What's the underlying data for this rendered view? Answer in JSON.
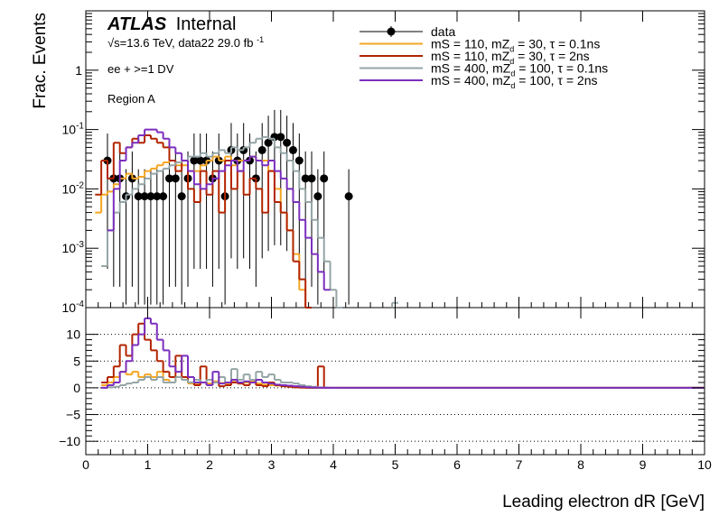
{
  "chart_data": {
    "type": "line",
    "header": {
      "experiment": "ATLAS",
      "status": "Internal",
      "energy": "√s=13.6 TeV, data22 29.0 fb",
      "energy_sup": "-1",
      "selection": "ee + >=1 DV",
      "region": "Region A"
    },
    "xlabel": "Leading electron dR [GeV]",
    "ylabel": "Frac. Events",
    "xlim": [
      0,
      10
    ],
    "ylim": [
      0.0001,
      10
    ],
    "yscale": "log",
    "x_ticks": [
      "0",
      "1",
      "2",
      "3",
      "4",
      "5",
      "6",
      "7",
      "8",
      "9",
      "10"
    ],
    "y_ticks": [
      {
        "base": "10",
        "exp": "-4"
      },
      {
        "base": "10",
        "exp": "-3"
      },
      {
        "base": "10",
        "exp": "-2"
      },
      {
        "base": "10",
        "exp": "-1"
      },
      {
        "base": "1",
        "exp": ""
      }
    ],
    "ratio": {
      "ylim": [
        -12.5,
        15
      ],
      "y_ticks": [
        "−10",
        "−5",
        "0",
        "5",
        "10"
      ],
      "gridlines": [
        -10,
        -5,
        0,
        5,
        10
      ]
    },
    "legend_position": "top-right",
    "series": [
      {
        "label": {
          "a": "data",
          "b": "",
          "c": ""
        },
        "color": "#000000",
        "kind": "points",
        "x": [
          0.35,
          0.45,
          0.55,
          0.65,
          0.75,
          0.85,
          0.95,
          1.05,
          1.15,
          1.25,
          1.35,
          1.45,
          1.55,
          1.65,
          1.75,
          1.85,
          1.95,
          2.05,
          2.15,
          2.25,
          2.35,
          2.45,
          2.55,
          2.65,
          2.75,
          2.85,
          2.95,
          3.05,
          3.15,
          3.25,
          3.35,
          3.45,
          3.55,
          3.65,
          3.75,
          3.85,
          4.25
        ],
        "y": [
          0.03,
          0.015,
          0.015,
          0.0075,
          0.015,
          0.0075,
          0.0075,
          0.0075,
          0.0075,
          0.0075,
          0.015,
          0.015,
          0.0075,
          0.015,
          0.03,
          0.03,
          0.03,
          0.015,
          0.03,
          0.0075,
          0.045,
          0.03,
          0.045,
          0.03,
          0.015,
          0.045,
          0.06,
          0.075,
          0.075,
          0.06,
          0.045,
          0.03,
          0.015,
          0.015,
          0.0075,
          0.015,
          0.0075
        ]
      },
      {
        "label": {
          "a": "mS = 110, mZ",
          "b": "d",
          "c": " = 30, τ = 0.1ns"
        },
        "color": "#f5a623",
        "kind": "hist",
        "x": [
          0.2,
          0.3,
          0.4,
          0.5,
          0.6,
          0.7,
          0.8,
          0.9,
          1.0,
          1.1,
          1.2,
          1.3,
          1.4,
          1.5,
          1.6,
          1.7,
          1.8,
          1.9,
          2.0,
          2.1,
          2.2,
          2.3,
          2.4,
          2.5,
          2.6,
          2.7,
          2.8,
          2.9,
          3.0,
          3.1,
          3.2,
          3.3,
          3.4,
          3.5,
          3.6
        ],
        "y": [
          0.004,
          0.008,
          0.009,
          0.012,
          0.015,
          0.018,
          0.015,
          0.016,
          0.02,
          0.022,
          0.025,
          0.028,
          0.03,
          0.025,
          0.025,
          0.02,
          0.02,
          0.025,
          0.03,
          0.035,
          0.03,
          0.035,
          0.025,
          0.03,
          0.03,
          0.035,
          0.03,
          0.03,
          0.02,
          0.01,
          0.004,
          0.002,
          0.0008,
          0.0002,
          0.0001
        ]
      },
      {
        "label": {
          "a": "mS = 110, mZ",
          "b": "d",
          "c": " = 30, τ = 2ns"
        },
        "color": "#b22400",
        "kind": "hist",
        "x": [
          0.2,
          0.3,
          0.4,
          0.5,
          0.6,
          0.7,
          0.8,
          0.9,
          1.0,
          1.1,
          1.2,
          1.3,
          1.4,
          1.5,
          1.6,
          1.7,
          1.8,
          1.9,
          2.0,
          2.1,
          2.2,
          2.3,
          2.4,
          2.5,
          2.6,
          2.7,
          2.8,
          2.9,
          3.0,
          3.1,
          3.2,
          3.3,
          3.4,
          3.5,
          3.6
        ],
        "y": [
          0.008,
          0.03,
          0.015,
          0.06,
          0.04,
          0.05,
          0.07,
          0.06,
          0.08,
          0.07,
          0.06,
          0.05,
          0.03,
          0.02,
          0.03,
          0.01,
          0.006,
          0.02,
          0.008,
          0.02,
          0.004,
          0.03,
          0.01,
          0.02,
          0.008,
          0.015,
          0.01,
          0.004,
          0.02,
          0.006,
          0.004,
          0.002,
          0.0006,
          0.0003,
          0.0001
        ]
      },
      {
        "label": {
          "a": "mS = 400, mZ",
          "b": "d",
          "c": " = 100, τ = 0.1ns"
        },
        "color": "#95a5a6",
        "kind": "hist",
        "x": [
          0.3,
          0.4,
          0.5,
          0.6,
          0.7,
          0.8,
          0.9,
          1.0,
          1.1,
          1.2,
          1.3,
          1.4,
          1.5,
          1.6,
          1.7,
          1.8,
          1.9,
          2.0,
          2.1,
          2.2,
          2.3,
          2.4,
          2.5,
          2.6,
          2.7,
          2.8,
          2.9,
          3.0,
          3.1,
          3.2,
          3.3,
          3.4,
          3.5,
          3.6,
          3.7,
          3.8,
          3.9,
          4.0,
          4.1,
          5.0
        ],
        "y": [
          0.0005,
          0.002,
          0.004,
          0.006,
          0.008,
          0.01,
          0.012,
          0.015,
          0.018,
          0.02,
          0.022,
          0.025,
          0.028,
          0.03,
          0.035,
          0.035,
          0.04,
          0.035,
          0.04,
          0.045,
          0.04,
          0.05,
          0.045,
          0.05,
          0.06,
          0.07,
          0.075,
          0.07,
          0.05,
          0.04,
          0.03,
          0.02,
          0.01,
          0.006,
          0.003,
          0.0015,
          0.0006,
          0.0002,
          0.0001,
          0.00012
        ]
      },
      {
        "label": {
          "a": "mS = 400, mZ",
          "b": "d",
          "c": " = 100, τ = 2ns"
        },
        "color": "#7b2fbe",
        "kind": "hist",
        "x": [
          0.4,
          0.5,
          0.6,
          0.7,
          0.8,
          0.9,
          1.0,
          1.1,
          1.2,
          1.3,
          1.4,
          1.5,
          1.6,
          1.7,
          1.8,
          1.9,
          2.0,
          2.1,
          2.2,
          2.3,
          2.4,
          2.5,
          2.6,
          2.7,
          2.8,
          2.9,
          3.0,
          3.1,
          3.2,
          3.3,
          3.4,
          3.5,
          3.6,
          3.7,
          3.8,
          3.9
        ],
        "y": [
          0.002,
          0.01,
          0.03,
          0.05,
          0.06,
          0.08,
          0.1,
          0.1,
          0.09,
          0.07,
          0.05,
          0.04,
          0.03,
          0.02,
          0.012,
          0.01,
          0.012,
          0.015,
          0.02,
          0.025,
          0.03,
          0.02,
          0.03,
          0.035,
          0.03,
          0.025,
          0.03,
          0.02,
          0.015,
          0.01,
          0.006,
          0.003,
          0.0015,
          0.0008,
          0.0004,
          0.0002
        ]
      }
    ],
    "ratio_series": [
      {
        "color": "#f5a623",
        "x": [
          0.3,
          0.4,
          0.5,
          0.6,
          0.7,
          0.8,
          0.9,
          1.0,
          1.1,
          1.2,
          1.3,
          1.4,
          1.5,
          1.6,
          1.7,
          1.8,
          1.9,
          2.0,
          2.1,
          2.2,
          2.3,
          2.4,
          2.5,
          2.6,
          2.7,
          2.8,
          2.9,
          3.0,
          3.1,
          3.2,
          3.3,
          3.4,
          3.5,
          3.6,
          3.7,
          3.8,
          3.9,
          4.0
        ],
        "y": [
          0.5,
          1,
          2,
          3,
          2.5,
          3,
          2,
          2.5,
          2,
          3,
          1.5,
          1,
          2,
          1.5,
          0.8,
          0.7,
          1,
          0.8,
          1.2,
          0.9,
          0.7,
          1.1,
          0.8,
          1,
          1.2,
          0.8,
          0.6,
          0.5,
          0.4,
          0.3,
          0.2,
          0.1,
          0.05,
          0.02,
          0.01,
          0,
          0,
          0
        ]
      },
      {
        "color": "#b22400",
        "x": [
          0.3,
          0.4,
          0.5,
          0.6,
          0.7,
          0.8,
          0.9,
          1.0,
          1.1,
          1.2,
          1.3,
          1.4,
          1.5,
          1.6,
          1.7,
          1.8,
          1.9,
          2.0,
          2.1,
          2.2,
          2.3,
          2.4,
          2.5,
          2.6,
          2.7,
          2.8,
          2.9,
          3.0,
          3.1,
          3.2,
          3.3,
          3.4,
          3.5,
          3.6,
          3.7,
          3.8,
          3.9,
          4.0
        ],
        "y": [
          1,
          2,
          4,
          8,
          6,
          10,
          12,
          9,
          7,
          5,
          3,
          2,
          6,
          2,
          1,
          0.5,
          4,
          0.5,
          1,
          0.3,
          0.5,
          1,
          0.8,
          0.5,
          1,
          0.5,
          0.3,
          1,
          0.5,
          0.3,
          0.2,
          0.1,
          0.05,
          0,
          0,
          4,
          0,
          0
        ]
      },
      {
        "color": "#95a5a6",
        "x": [
          0.3,
          0.4,
          0.5,
          0.6,
          0.7,
          0.8,
          0.9,
          1.0,
          1.1,
          1.2,
          1.3,
          1.4,
          1.5,
          1.6,
          1.7,
          1.8,
          1.9,
          2.0,
          2.1,
          2.2,
          2.3,
          2.4,
          2.5,
          2.6,
          2.7,
          2.8,
          2.9,
          3.0,
          3.1,
          3.2,
          3.3,
          3.4,
          3.5,
          3.6,
          3.7,
          3.8,
          3.9,
          4.0
        ],
        "y": [
          0,
          0.1,
          0.2,
          0.5,
          0.8,
          1,
          1.5,
          2,
          1.5,
          2,
          1,
          1,
          2,
          1.5,
          1,
          1.5,
          1,
          1.5,
          1,
          2,
          1,
          3.5,
          1.5,
          2.5,
          1.5,
          3,
          2,
          2.5,
          1.5,
          1,
          1,
          0.8,
          0.5,
          0.3,
          0.2,
          0.1,
          0.05,
          0
        ]
      },
      {
        "color": "#7b2fbe",
        "x": [
          0.3,
          0.4,
          0.5,
          0.6,
          0.7,
          0.8,
          0.9,
          1.0,
          1.1,
          1.2,
          1.3,
          1.4,
          1.5,
          1.6,
          1.7,
          1.8,
          1.9,
          2.0,
          2.1,
          2.2,
          2.3,
          2.4,
          2.5,
          2.6,
          2.7,
          2.8,
          2.9,
          3.0,
          3.1,
          3.2,
          3.3,
          3.4,
          3.5,
          3.6,
          3.7,
          3.8,
          3.9,
          4.0
        ],
        "y": [
          0,
          0.5,
          1,
          3,
          5,
          8,
          10,
          13,
          12,
          9,
          7,
          4,
          3,
          6,
          2,
          1,
          1,
          0.5,
          3,
          0.8,
          1,
          1.5,
          1,
          1.2,
          1,
          1.5,
          1,
          0.8,
          0.6,
          0.5,
          0.4,
          0.3,
          0.2,
          0.1,
          0.05,
          0,
          0,
          0
        ]
      }
    ]
  }
}
